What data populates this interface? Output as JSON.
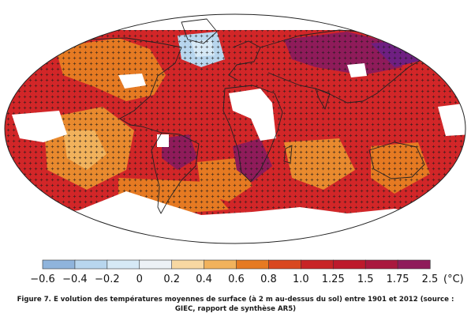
{
  "figure": {
    "caption_line1": "Figure 7. E volution des températures moyennes de surface (à 2 m au-dessus du sol) entre 1901 et 2012 (source :",
    "caption_line2": "GIEC, rapport de synthèse AR5)"
  },
  "legend": {
    "unit": "(°C)",
    "ticks": [
      "−0.6",
      "−0.4",
      "−0.2",
      "0",
      "0.2",
      "0.4",
      "0.6",
      "0.8",
      "1.0",
      "1.25",
      "1.5",
      "1.75",
      "2.5"
    ],
    "colors": [
      "#8fb4dc",
      "#b8d6ee",
      "#d6e9f6",
      "#ecf1f6",
      "#f8d8a2",
      "#f1b25c",
      "#e67a22",
      "#d9481f",
      "#c82426",
      "#bd1a2c",
      "#a9183e",
      "#8f1b5a",
      "#6f1f82"
    ]
  },
  "map": {
    "background_color": "#d22628",
    "significance_marker": "plus-sign-stippling",
    "no_data_color": "#ffffff"
  }
}
